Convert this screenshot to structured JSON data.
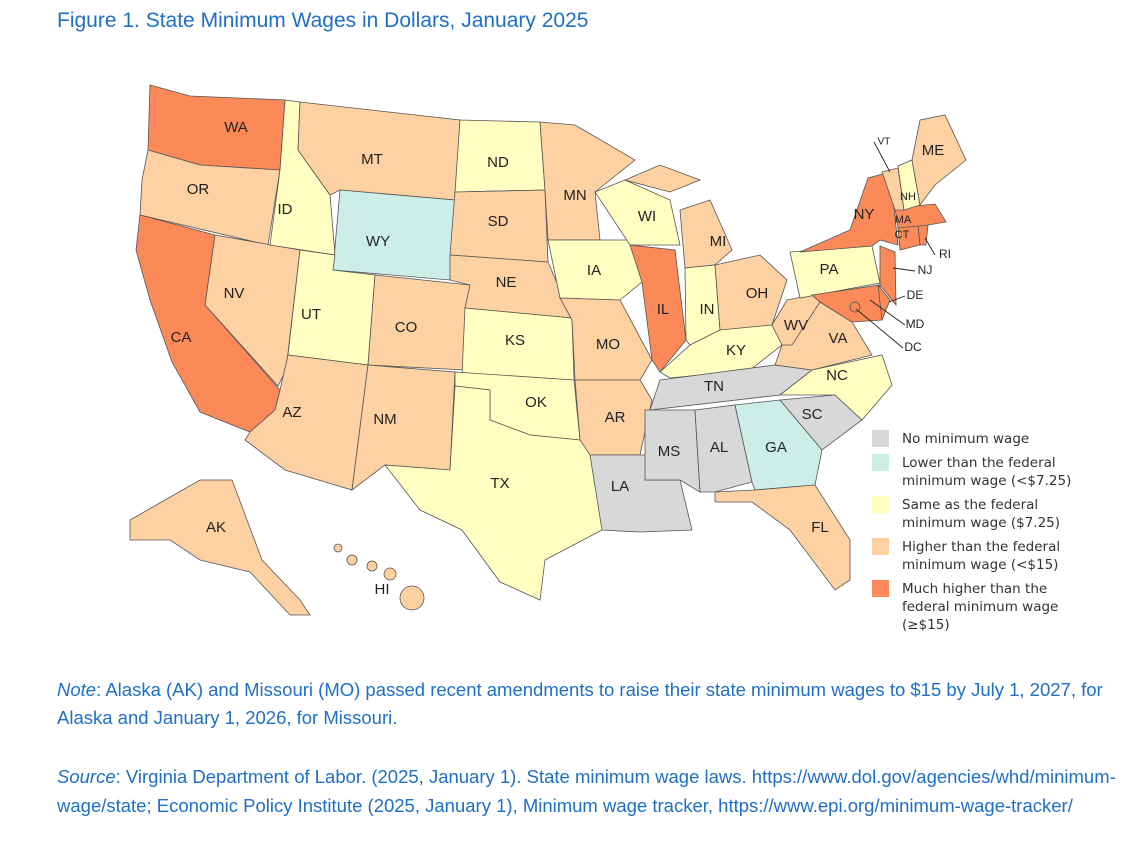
{
  "title": "Figure 1. State Minimum Wages in Dollars, January 2025",
  "colors": {
    "none": "#d8d8d8",
    "lower": "#cdeee6",
    "same": "#ffffc2",
    "higher": "#fdd1a2",
    "much": "#fb8a58"
  },
  "legend": [
    {
      "key": "none",
      "label": "No minimum wage"
    },
    {
      "key": "lower",
      "label": "Lower than the federal\nminimum wage (<$7.25)"
    },
    {
      "key": "same",
      "label": "Same as the federal\nminimum wage ($7.25)"
    },
    {
      "key": "higher",
      "label": "Higher than the federal\nminimum wage (<$15)"
    },
    {
      "key": "much",
      "label": "Much higher than the\nfederal minimum wage\n(≥$15)"
    }
  ],
  "states": {
    "WA": "much",
    "OR": "higher",
    "CA": "much",
    "NV": "higher",
    "ID": "same",
    "MT": "higher",
    "WY": "lower",
    "UT": "same",
    "AZ": "higher",
    "CO": "higher",
    "NM": "higher",
    "ND": "same",
    "SD": "higher",
    "NE": "higher",
    "KS": "same",
    "OK": "same",
    "TX": "same",
    "MN": "higher",
    "IA": "same",
    "MO": "higher",
    "AR": "higher",
    "LA": "none",
    "WI": "same",
    "IL": "much",
    "MI": "higher",
    "IN": "same",
    "OH": "higher",
    "KY": "same",
    "TN": "none",
    "MS": "none",
    "AL": "none",
    "GA": "lower",
    "FL": "higher",
    "SC": "none",
    "NC": "same",
    "VA": "higher",
    "WV": "higher",
    "PA": "same",
    "NY": "much",
    "MD": "much",
    "DE": "much",
    "NJ": "much",
    "CT": "much",
    "RI": "much",
    "MA": "much",
    "VT": "higher",
    "NH": "same",
    "ME": "higher",
    "AK": "higher",
    "HI": "higher",
    "DC": "much"
  },
  "note": {
    "lead": "Note",
    "text": ": Alaska (AK) and Missouri (MO) passed recent amendments to raise their state minimum wages to $15 by July 1, 2027, for Alaska and January 1, 2026, for Missouri."
  },
  "source": {
    "lead": "Source",
    "text": ": Virginia Department of Labor. (2025, January 1). State minimum wage laws. https://www.dol.gov/agencies/whd/minimum-wage/state; Economic Policy Institute (2025, January 1), Minimum wage tracker, https://www.epi.org/minimum-wage-tracker/"
  }
}
